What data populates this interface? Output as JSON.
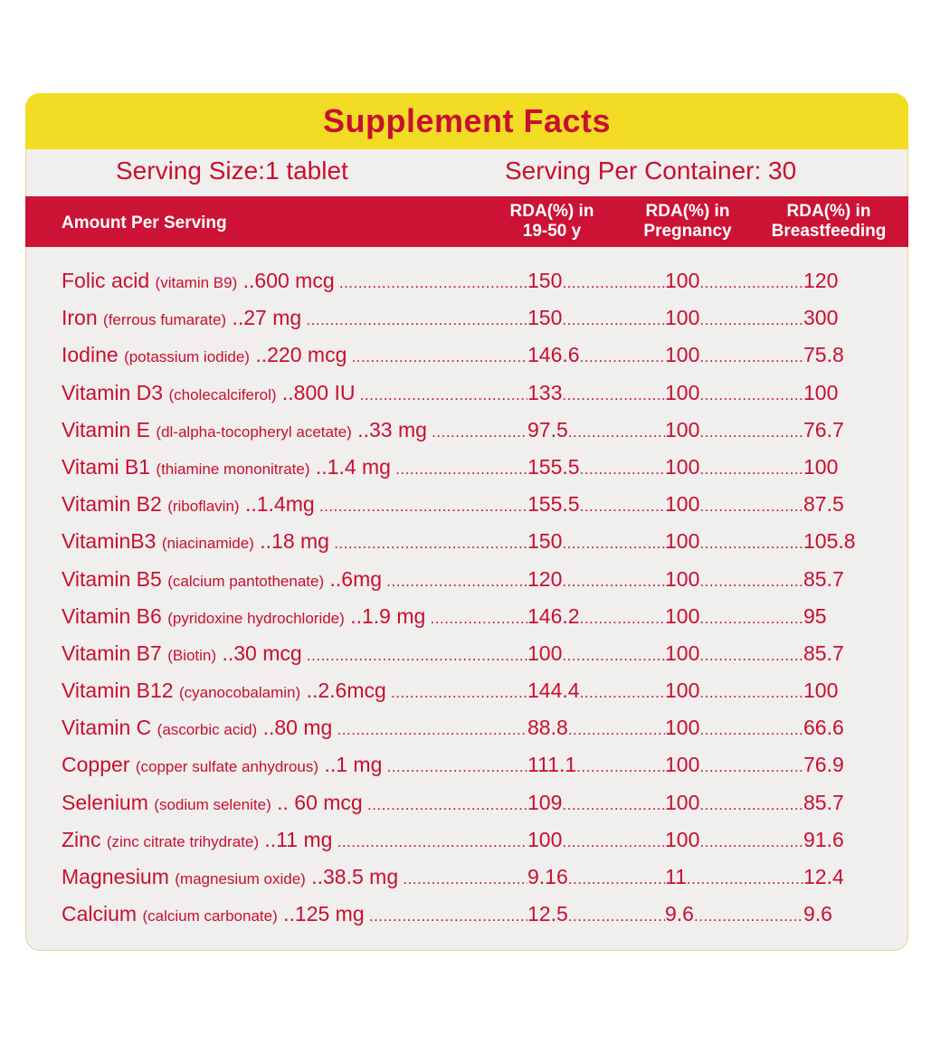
{
  "label": {
    "title": "Supplement Facts",
    "serving_size": "Serving Size:1 tablet",
    "serving_per_container": "Serving Per Container: 30",
    "header": {
      "amount": "Amount Per Serving",
      "col1_line1": "RDA(%) in",
      "col1_line2": "19-50 y",
      "col2_line1": "RDA(%) in",
      "col2_line2": "Pregnancy",
      "col3_line1": "RDA(%) in",
      "col3_line2": "Breastfeeding"
    },
    "rows": [
      {
        "name": "Folic acid",
        "source": "(vitamin B9)",
        "amount": "..600 mcg",
        "v1": "150",
        "v2": "100",
        "v3": "120"
      },
      {
        "name": "Iron",
        "source": "(ferrous fumarate)",
        "amount": "..27 mg",
        "v1": "150",
        "v2": "100",
        "v3": "300"
      },
      {
        "name": "Iodine",
        "source": "(potassium iodide)",
        "amount": "..220 mcg",
        "v1": "146.6",
        "v2": "100",
        "v3": "75.8"
      },
      {
        "name": "Vitamin D3",
        "source": "(cholecalciferol)",
        "amount": "..800 IU",
        "v1": "133",
        "v2": "100",
        "v3": "100"
      },
      {
        "name": "Vitamin E",
        "source": "(dl-alpha-tocopheryl acetate)",
        "amount": "..33 mg",
        "v1": "97.5",
        "v2": "100",
        "v3": "76.7"
      },
      {
        "name": "Vitami B1",
        "source": "(thiamine mononitrate)",
        "amount": "..1.4 mg",
        "v1": "155.5",
        "v2": "100",
        "v3": "100"
      },
      {
        "name": "Vitamin B2",
        "source": "(riboflavin)",
        "amount": "..1.4mg",
        "v1": "155.5",
        "v2": "100",
        "v3": "87.5"
      },
      {
        "name": "VitaminB3",
        "source": "(niacinamide)",
        "amount": "..18 mg",
        "v1": "150",
        "v2": "100",
        "v3": "105.8"
      },
      {
        "name": "Vitamin B5",
        "source": "(calcium pantothenate)",
        "amount": "..6mg",
        "v1": "120",
        "v2": "100",
        "v3": "85.7"
      },
      {
        "name": "Vitamin B6",
        "source": "(pyridoxine hydrochloride)",
        "amount": "..1.9 mg",
        "v1": "146.2",
        "v2": "100",
        "v3": "95"
      },
      {
        "name": "Vitamin B7",
        "source": "(Biotin)",
        "amount": "..30 mcg",
        "v1": "100",
        "v2": "100",
        "v3": "85.7"
      },
      {
        "name": "Vitamin B12",
        "source": "(cyanocobalamin)",
        "amount": "..2.6mcg",
        "v1": "144.4",
        "v2": "100",
        "v3": "100"
      },
      {
        "name": "Vitamin C",
        "source": "(ascorbic acid)",
        "amount": "..80 mg",
        "v1": "88.8",
        "v2": "100",
        "v3": "66.6"
      },
      {
        "name": "Copper",
        "source": "(copper sulfate anhydrous)",
        "amount": "..1 mg",
        "v1": "111.1",
        "v2": "100",
        "v3": "76.9"
      },
      {
        "name": "Selenium",
        "source": "(sodium selenite)",
        "amount": ".. 60 mcg",
        "v1": "109",
        "v2": "100",
        "v3": "85.7"
      },
      {
        "name": "Zinc",
        "source": "(zinc citrate trihydrate)",
        "amount": "..11 mg",
        "v1": "100",
        "v2": "100",
        "v3": "91.6"
      },
      {
        "name": "Magnesium",
        "source": "(magnesium oxide)",
        "amount": "..38.5 mg",
        "v1": "9.16",
        "v2": "11",
        "v3": "12.4"
      },
      {
        "name": "Calcium",
        "source": "(calcium carbonate)",
        "amount": "..125 mg",
        "v1": "12.5",
        "v2": "9.6",
        "v3": "9.6"
      }
    ]
  },
  "colors": {
    "text_red": "#c8102e",
    "header_red": "#cc1335",
    "title_yellow": "#f2dc24",
    "card_background": "#f1eeee"
  }
}
